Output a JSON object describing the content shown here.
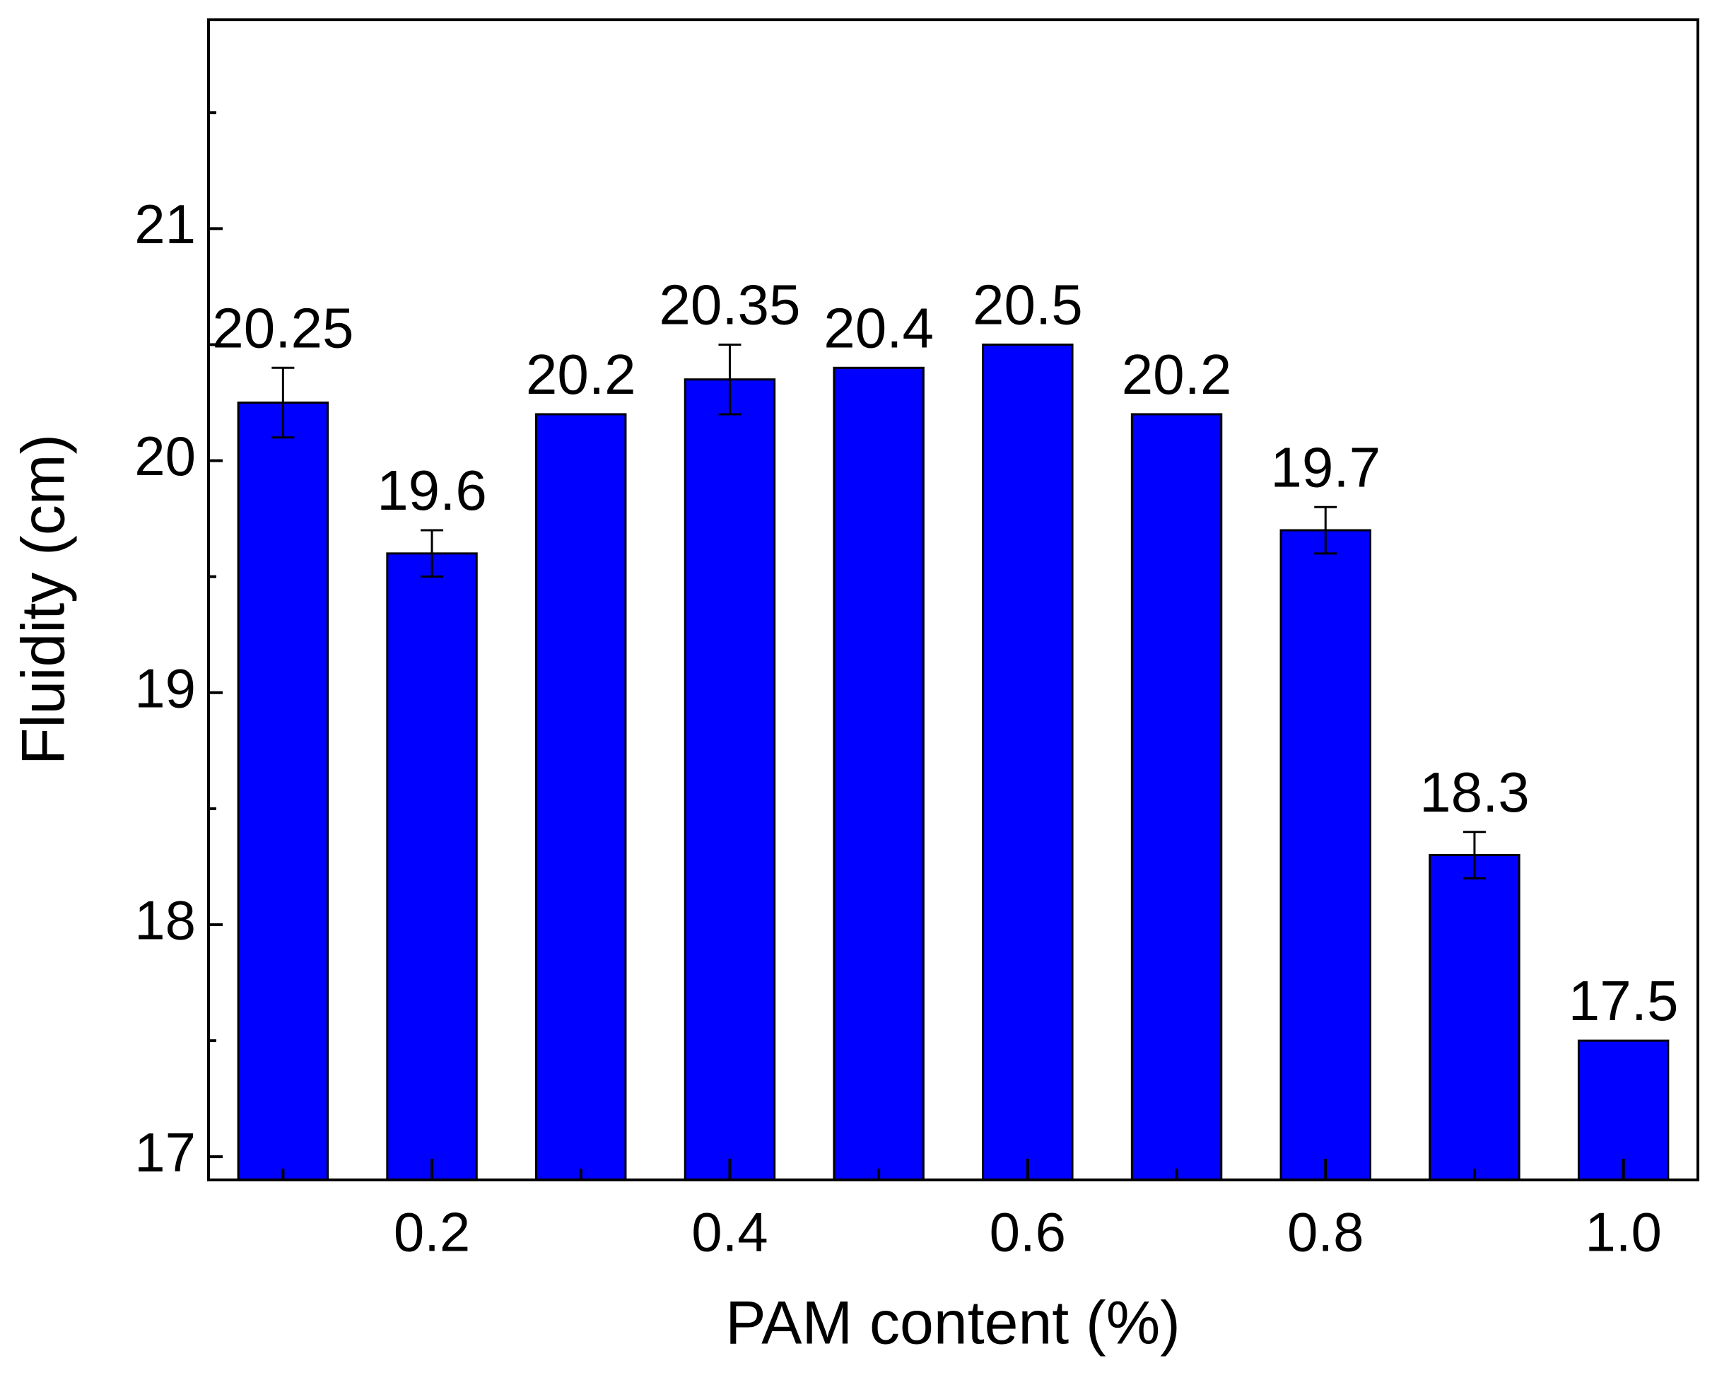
{
  "chart_data": {
    "type": "bar",
    "x_label": "PAM content (%)",
    "y_label": "Fluidity (cm)",
    "x": [
      0.1,
      0.2,
      0.3,
      0.4,
      0.5,
      0.6,
      0.7,
      0.8,
      0.9,
      1.0
    ],
    "values": [
      20.25,
      19.6,
      20.2,
      20.35,
      20.4,
      20.5,
      20.2,
      19.7,
      18.3,
      17.5
    ],
    "errors": [
      0.15,
      0.1,
      0,
      0.15,
      0,
      0,
      0,
      0.1,
      0.1,
      0
    ],
    "color": "#0000ff",
    "xlim": [
      0.05,
      1.05
    ],
    "xticks": [
      0.2,
      0.4,
      0.6,
      0.8,
      {
        "value": 1,
        "label": "1.0"
      }
    ],
    "xminor": [
      0.1,
      0.3,
      0.5,
      0.7,
      0.9
    ],
    "ylim": [
      16.9,
      21.9
    ],
    "yticks": [
      17,
      18,
      19,
      20,
      21
    ],
    "yminor": [
      17.5,
      18.5,
      19.5,
      20.5,
      21.5
    ]
  }
}
